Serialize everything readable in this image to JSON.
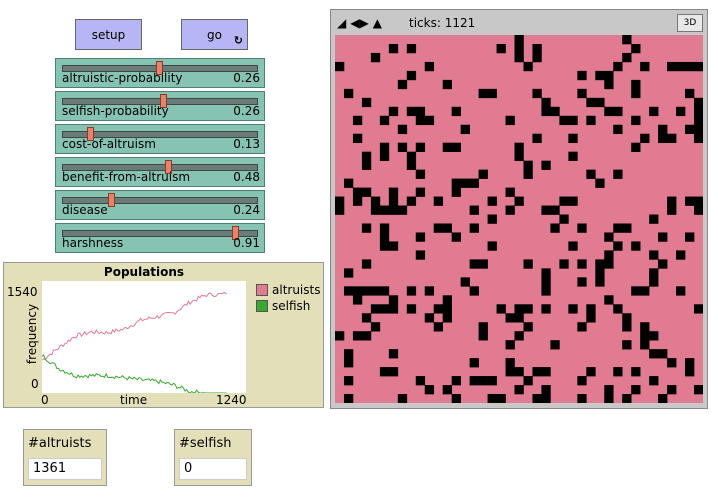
{
  "buttons": {
    "setup": "setup",
    "go": "go"
  },
  "sliders": [
    {
      "label": "altruistic-probability",
      "value": "0.26",
      "fraction": 0.5
    },
    {
      "label": "selfish-probability",
      "value": "0.26",
      "fraction": 0.52
    },
    {
      "label": "cost-of-altruism",
      "value": "0.13",
      "fraction": 0.13
    },
    {
      "label": "benefit-from-altruism",
      "value": "0.48",
      "fraction": 0.55
    },
    {
      "label": "disease",
      "value": "0.24",
      "fraction": 0.24
    },
    {
      "label": "harshness",
      "value": "0.91",
      "fraction": 0.91
    }
  ],
  "plot": {
    "title": "Populations",
    "ylabel": "frequency",
    "xlabel": "time",
    "ymax": "1540",
    "ymin": "0",
    "xmin": "0",
    "xmax": "1240",
    "legend": [
      {
        "name": "altruists",
        "color": "#e07b92"
      },
      {
        "name": "selfish",
        "color": "#3aa832"
      }
    ]
  },
  "chart_data": {
    "type": "line",
    "title": "Populations",
    "xlabel": "time",
    "ylabel": "frequency",
    "xlim": [
      0,
      1240
    ],
    "ylim": [
      0,
      1540
    ],
    "x": [
      0,
      100,
      200,
      300,
      400,
      500,
      600,
      700,
      800,
      900,
      1000,
      1121
    ],
    "series": [
      {
        "name": "altruists",
        "color": "#e07b92",
        "values": [
          450,
          620,
          780,
          840,
          830,
          880,
          1000,
          1050,
          1100,
          1250,
          1350,
          1361
        ]
      },
      {
        "name": "selfish",
        "color": "#3aa832",
        "values": [
          520,
          340,
          240,
          240,
          240,
          210,
          180,
          160,
          110,
          20,
          0,
          0
        ]
      }
    ]
  },
  "world": {
    "ticks_label": "ticks: 1121",
    "btn3d": "3D",
    "colors": {
      "patch": "#e07b92",
      "agent": "#000000"
    }
  },
  "monitors": {
    "altruists": {
      "label": "#altruists",
      "value": "1361"
    },
    "selfish": {
      "label": "#selfish",
      "value": "0"
    }
  }
}
